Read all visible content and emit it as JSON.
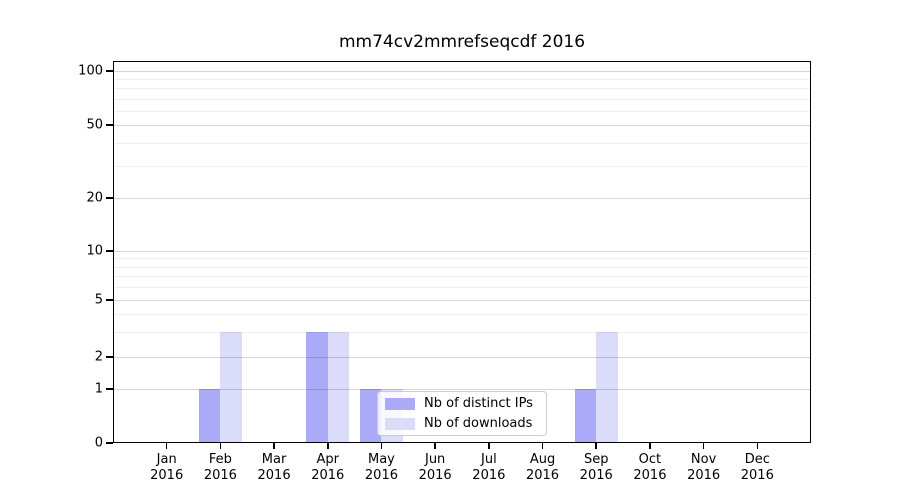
{
  "chart_data": {
    "type": "bar",
    "title": "mm74cv2mmrefseqcdf 2016",
    "categories": [
      "Jan 2016",
      "Feb 2016",
      "Mar 2016",
      "Apr 2016",
      "May 2016",
      "Jun 2016",
      "Jul 2016",
      "Aug 2016",
      "Sep 2016",
      "Oct 2016",
      "Nov 2016",
      "Dec 2016"
    ],
    "series": [
      {
        "name": "Nb of distinct IPs",
        "color": "#aaaaf9",
        "values": [
          0,
          1,
          0,
          3,
          1,
          0,
          0,
          0,
          1,
          0,
          0,
          0
        ]
      },
      {
        "name": "Nb of downloads",
        "color": "#dbdbfa",
        "values": [
          0,
          3,
          0,
          3,
          1,
          0,
          0,
          0,
          3,
          0,
          0,
          0
        ]
      }
    ],
    "yscale": "symlog",
    "ylim": [
      0,
      110
    ],
    "yticks": [
      0,
      1,
      2,
      5,
      10,
      20,
      50,
      100
    ],
    "ytick_labels": [
      "0",
      "1",
      "2",
      "5",
      "10",
      "20",
      "50",
      "100"
    ],
    "yminor_gridlines": [
      3,
      4,
      6,
      7,
      8,
      9,
      30,
      40,
      60,
      70,
      80,
      90
    ],
    "grid": "horizontal major and minor, drawn above bars",
    "legend_position": "inside lower-center",
    "xlabel": "",
    "ylabel": ""
  }
}
